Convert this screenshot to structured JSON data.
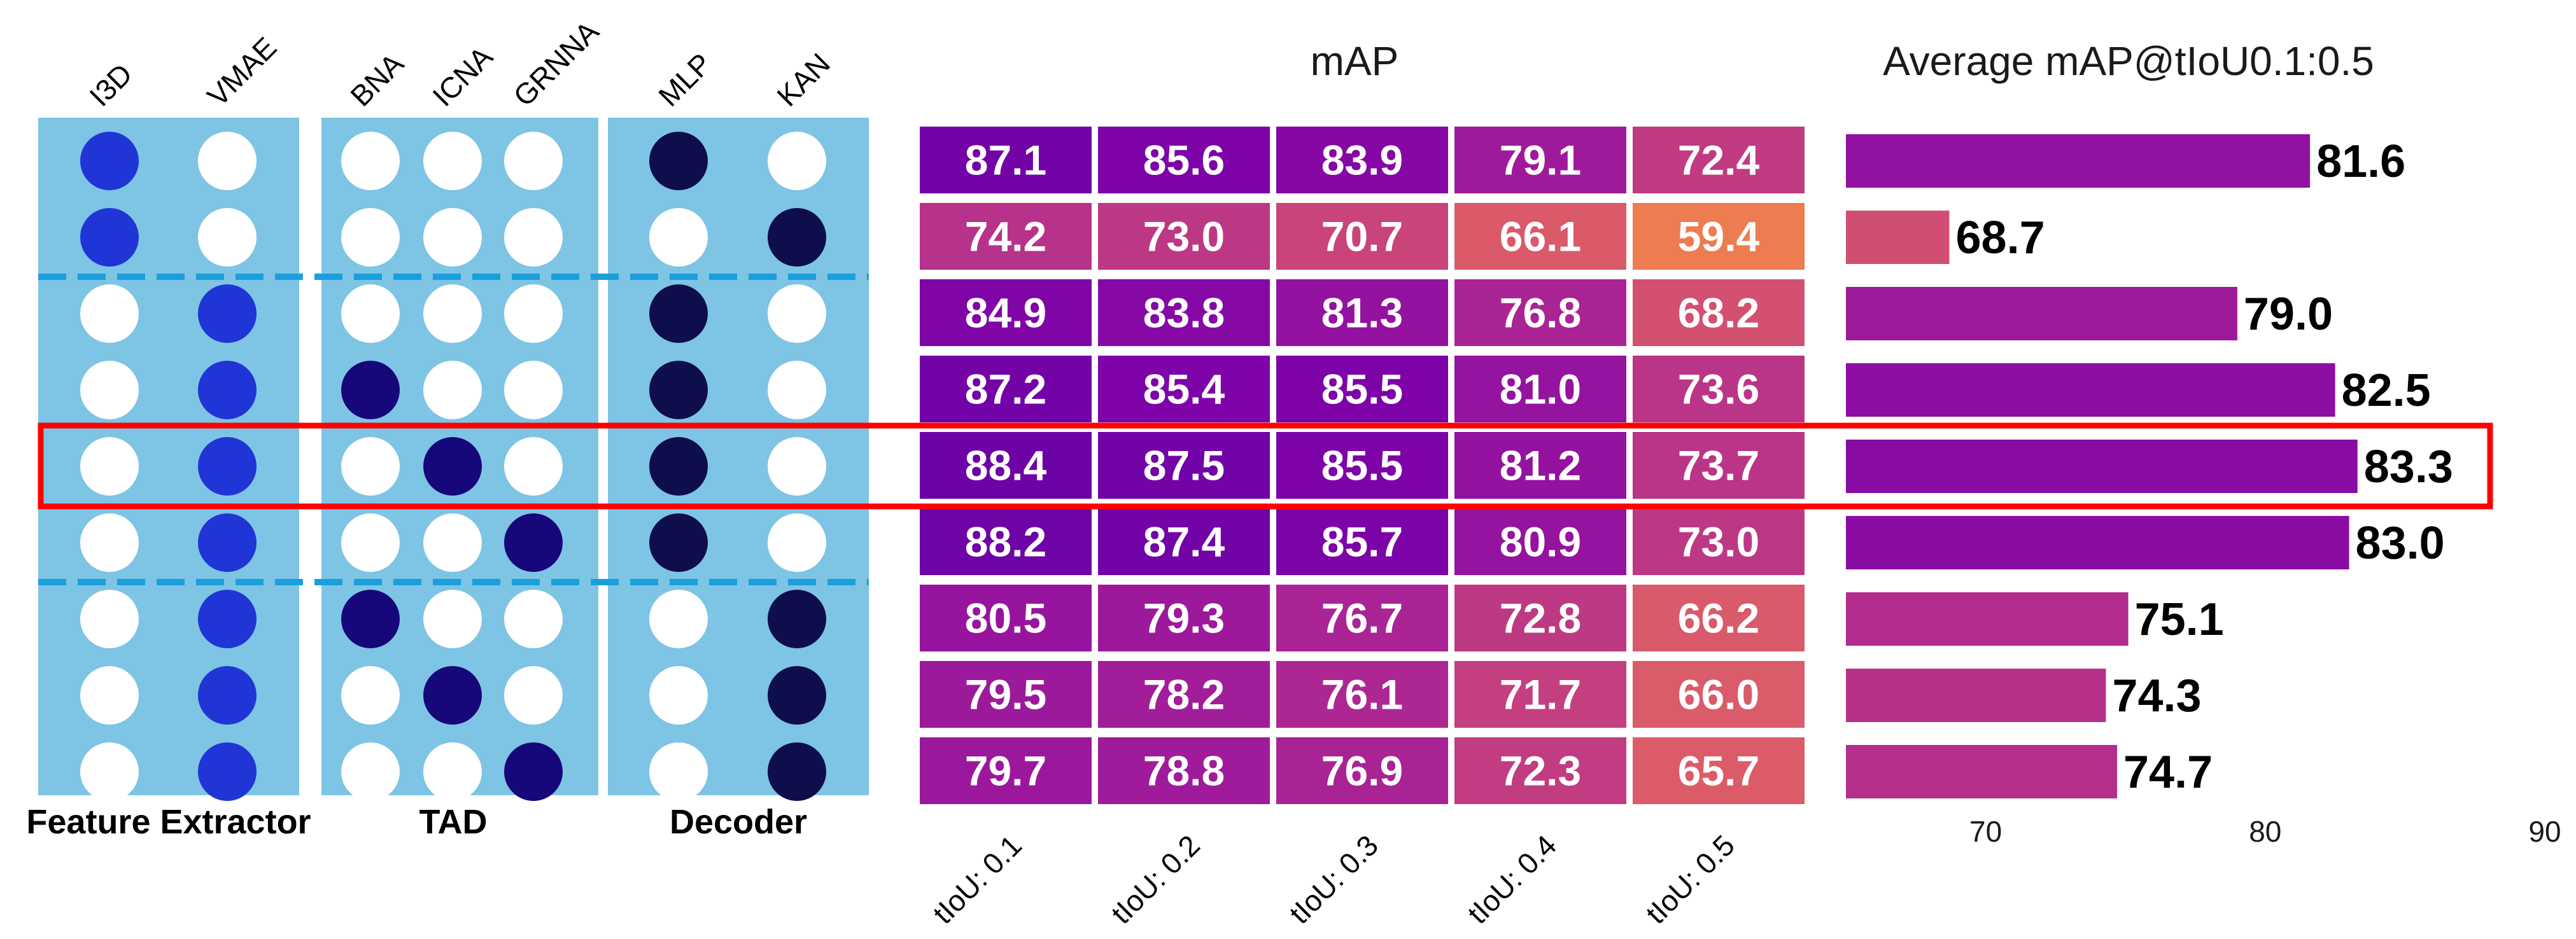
{
  "chart_data": {
    "type": "heatmap",
    "config_panel": {
      "groups": [
        {
          "label": "Feature Extractor",
          "columns": [
            "I3D",
            "VMAE"
          ]
        },
        {
          "label": "TAD",
          "columns": [
            "BNA",
            "ICNA",
            "GRNNA"
          ]
        },
        {
          "label": "Decoder",
          "columns": [
            "MLP",
            "KAN"
          ]
        }
      ],
      "selected": [
        {
          "feature": "I3D",
          "tad": "none",
          "decoder": "MLP"
        },
        {
          "feature": "I3D",
          "tad": "none",
          "decoder": "KAN"
        },
        {
          "feature": "VMAE",
          "tad": "none",
          "decoder": "MLP"
        },
        {
          "feature": "VMAE",
          "tad": "BNA",
          "decoder": "MLP"
        },
        {
          "feature": "VMAE",
          "tad": "ICNA",
          "decoder": "MLP"
        },
        {
          "feature": "VMAE",
          "tad": "GRNNA",
          "decoder": "MLP"
        },
        {
          "feature": "VMAE",
          "tad": "BNA",
          "decoder": "KAN"
        },
        {
          "feature": "VMAE",
          "tad": "ICNA",
          "decoder": "KAN"
        },
        {
          "feature": "VMAE",
          "tad": "GRNNA",
          "decoder": "KAN"
        }
      ],
      "colors": {
        "panel": "#7ec4e4",
        "feature_on": "#1f35d6",
        "tad_on": "#16087a",
        "decoder_on": "#0e0e4d",
        "off": "#ffffff",
        "divider": "#1a9fdc"
      },
      "divider_after_rows": [
        2,
        6
      ]
    },
    "heatmap": {
      "title": "mAP",
      "x_labels": [
        "tIoU: 0.1",
        "tIoU: 0.2",
        "tIoU: 0.3",
        "tIoU: 0.4",
        "tIoU: 0.5"
      ],
      "values": [
        [
          "87.1",
          "85.6",
          "83.9",
          "79.1",
          "72.4"
        ],
        [
          "74.2",
          "73.0",
          "70.7",
          "66.1",
          "59.4"
        ],
        [
          "84.9",
          "83.8",
          "81.3",
          "76.8",
          "68.2"
        ],
        [
          "87.2",
          "85.4",
          "85.5",
          "81.0",
          "73.6"
        ],
        [
          "88.4",
          "87.5",
          "85.5",
          "81.2",
          "73.7"
        ],
        [
          "88.2",
          "87.4",
          "85.7",
          "80.9",
          "73.0"
        ],
        [
          "80.5",
          "79.3",
          "76.7",
          "72.8",
          "66.2"
        ],
        [
          "79.5",
          "78.2",
          "76.1",
          "71.7",
          "66.0"
        ],
        [
          "79.7",
          "78.8",
          "76.9",
          "72.3",
          "65.7"
        ]
      ],
      "colormap": "plasma"
    },
    "bars": {
      "type": "bar",
      "title": "Average mAP@tIoU0.1:0.5",
      "orientation": "horizontal",
      "values": [
        "81.6",
        "68.7",
        "79.0",
        "82.5",
        "83.3",
        "83.0",
        "75.1",
        "74.3",
        "74.7"
      ],
      "xlim": [
        65,
        90
      ],
      "ticks": [
        "70",
        "80",
        "90"
      ]
    },
    "highlight": {
      "row": 4,
      "color": "#ff0000"
    }
  }
}
